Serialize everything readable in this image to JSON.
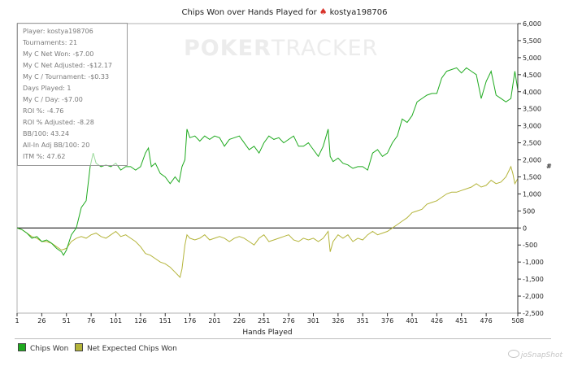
{
  "title": {
    "text_before": "Chips Won over Hands Played for",
    "player": "kostya198706"
  },
  "stats": {
    "rows": [
      "Player: kostya198706",
      "Tournaments: 21",
      "My C Net Won: -$7.00",
      "My C Net Adjusted: -$12.17",
      "My C / Tournament: -$0.33",
      "Days Played: 1",
      "My C / Day: -$7.00",
      "ROI %: -4.76",
      "ROI % Adjusted: -8.28",
      "BB/100: 43.24",
      "All-In Adj BB/100: 20",
      "ITM %: 47.62"
    ]
  },
  "watermark": {
    "part1": "POKER",
    "part2": "TRACKER"
  },
  "snap_logo": {
    "text": "joSnapShot"
  },
  "colors": {
    "chips_won": "#1faa1f",
    "net_expected": "#b4b43a",
    "zero_line": "#000000",
    "spade": "#d8332a"
  },
  "chart_data": {
    "type": "line",
    "title": "Chips Won over Hands Played for kostya198706",
    "xlabel": "Hands Played",
    "ylabel": "#",
    "xlim": [
      1,
      508
    ],
    "ylim": [
      -2500,
      6000
    ],
    "x_ticks": [
      1,
      26,
      51,
      76,
      101,
      126,
      151,
      176,
      201,
      226,
      251,
      276,
      301,
      326,
      351,
      376,
      401,
      426,
      451,
      476,
      508
    ],
    "y_ticks": [
      6000,
      5500,
      5000,
      4500,
      4000,
      3500,
      3000,
      2500,
      2000,
      1500,
      1000,
      500,
      0,
      -500,
      -1000,
      -1500,
      -2000,
      -2500
    ],
    "y_tick_labels": [
      "6,000",
      "5,500",
      "5,000",
      "4,500",
      "4,000",
      "3,500",
      "3,000",
      "2,500",
      "2,000",
      "1,500",
      "1,000",
      "500",
      "0",
      "-500",
      "-1,000",
      "-1,500",
      "-2,000",
      "-2,500"
    ],
    "legend_position": "bottom",
    "series": [
      {
        "name": "Chips Won",
        "points": [
          [
            1,
            0
          ],
          [
            6,
            -50
          ],
          [
            11,
            -150
          ],
          [
            16,
            -300
          ],
          [
            21,
            -250
          ],
          [
            26,
            -400
          ],
          [
            31,
            -350
          ],
          [
            36,
            -450
          ],
          [
            41,
            -600
          ],
          [
            46,
            -700
          ],
          [
            48,
            -800
          ],
          [
            51,
            -650
          ],
          [
            56,
            -200
          ],
          [
            61,
            0
          ],
          [
            66,
            600
          ],
          [
            71,
            800
          ],
          [
            75,
            1800
          ],
          [
            78,
            2200
          ],
          [
            81,
            1900
          ],
          [
            86,
            1800
          ],
          [
            91,
            1850
          ],
          [
            96,
            1800
          ],
          [
            101,
            1900
          ],
          [
            106,
            1700
          ],
          [
            111,
            1800
          ],
          [
            116,
            1800
          ],
          [
            121,
            1700
          ],
          [
            126,
            1800
          ],
          [
            131,
            2200
          ],
          [
            134,
            2350
          ],
          [
            137,
            1800
          ],
          [
            141,
            1900
          ],
          [
            146,
            1600
          ],
          [
            151,
            1500
          ],
          [
            156,
            1300
          ],
          [
            161,
            1500
          ],
          [
            165,
            1350
          ],
          [
            168,
            1800
          ],
          [
            171,
            2000
          ],
          [
            173,
            2900
          ],
          [
            176,
            2650
          ],
          [
            181,
            2700
          ],
          [
            186,
            2550
          ],
          [
            191,
            2700
          ],
          [
            196,
            2600
          ],
          [
            201,
            2700
          ],
          [
            206,
            2650
          ],
          [
            211,
            2400
          ],
          [
            216,
            2600
          ],
          [
            221,
            2650
          ],
          [
            226,
            2700
          ],
          [
            231,
            2500
          ],
          [
            236,
            2300
          ],
          [
            241,
            2400
          ],
          [
            246,
            2200
          ],
          [
            251,
            2500
          ],
          [
            256,
            2700
          ],
          [
            261,
            2600
          ],
          [
            266,
            2650
          ],
          [
            271,
            2500
          ],
          [
            276,
            2600
          ],
          [
            281,
            2700
          ],
          [
            286,
            2400
          ],
          [
            291,
            2400
          ],
          [
            296,
            2500
          ],
          [
            301,
            2300
          ],
          [
            306,
            2100
          ],
          [
            311,
            2400
          ],
          [
            316,
            2900
          ],
          [
            318,
            2100
          ],
          [
            321,
            1950
          ],
          [
            326,
            2050
          ],
          [
            331,
            1900
          ],
          [
            336,
            1850
          ],
          [
            341,
            1750
          ],
          [
            346,
            1800
          ],
          [
            351,
            1800
          ],
          [
            356,
            1700
          ],
          [
            361,
            2200
          ],
          [
            366,
            2300
          ],
          [
            371,
            2100
          ],
          [
            376,
            2200
          ],
          [
            381,
            2500
          ],
          [
            386,
            2700
          ],
          [
            391,
            3200
          ],
          [
            396,
            3100
          ],
          [
            401,
            3300
          ],
          [
            406,
            3700
          ],
          [
            411,
            3800
          ],
          [
            416,
            3900
          ],
          [
            421,
            3950
          ],
          [
            426,
            3950
          ],
          [
            431,
            4400
          ],
          [
            436,
            4600
          ],
          [
            441,
            4650
          ],
          [
            446,
            4700
          ],
          [
            451,
            4550
          ],
          [
            456,
            4700
          ],
          [
            461,
            4600
          ],
          [
            466,
            4500
          ],
          [
            471,
            3800
          ],
          [
            476,
            4300
          ],
          [
            481,
            4600
          ],
          [
            486,
            3900
          ],
          [
            491,
            3800
          ],
          [
            496,
            3700
          ],
          [
            501,
            3800
          ],
          [
            505,
            4600
          ],
          [
            508,
            4050
          ]
        ]
      },
      {
        "name": "Net Expected Chips Won",
        "points": [
          [
            1,
            0
          ],
          [
            6,
            -50
          ],
          [
            11,
            -150
          ],
          [
            16,
            -250
          ],
          [
            21,
            -300
          ],
          [
            26,
            -400
          ],
          [
            31,
            -400
          ],
          [
            36,
            -450
          ],
          [
            41,
            -550
          ],
          [
            46,
            -650
          ],
          [
            51,
            -600
          ],
          [
            56,
            -400
          ],
          [
            61,
            -300
          ],
          [
            66,
            -250
          ],
          [
            71,
            -300
          ],
          [
            76,
            -200
          ],
          [
            81,
            -150
          ],
          [
            86,
            -250
          ],
          [
            91,
            -300
          ],
          [
            96,
            -200
          ],
          [
            101,
            -100
          ],
          [
            106,
            -250
          ],
          [
            111,
            -200
          ],
          [
            116,
            -300
          ],
          [
            121,
            -400
          ],
          [
            126,
            -550
          ],
          [
            131,
            -750
          ],
          [
            136,
            -800
          ],
          [
            141,
            -900
          ],
          [
            146,
            -1000
          ],
          [
            151,
            -1050
          ],
          [
            156,
            -1150
          ],
          [
            161,
            -1300
          ],
          [
            166,
            -1450
          ],
          [
            168,
            -1200
          ],
          [
            171,
            -500
          ],
          [
            173,
            -200
          ],
          [
            176,
            -300
          ],
          [
            181,
            -350
          ],
          [
            186,
            -300
          ],
          [
            191,
            -200
          ],
          [
            196,
            -350
          ],
          [
            201,
            -300
          ],
          [
            206,
            -250
          ],
          [
            211,
            -300
          ],
          [
            216,
            -400
          ],
          [
            221,
            -300
          ],
          [
            226,
            -250
          ],
          [
            231,
            -300
          ],
          [
            236,
            -400
          ],
          [
            241,
            -500
          ],
          [
            246,
            -300
          ],
          [
            251,
            -200
          ],
          [
            256,
            -400
          ],
          [
            261,
            -350
          ],
          [
            266,
            -300
          ],
          [
            271,
            -250
          ],
          [
            276,
            -200
          ],
          [
            281,
            -350
          ],
          [
            286,
            -400
          ],
          [
            291,
            -300
          ],
          [
            296,
            -350
          ],
          [
            301,
            -300
          ],
          [
            306,
            -400
          ],
          [
            311,
            -300
          ],
          [
            316,
            -100
          ],
          [
            318,
            -700
          ],
          [
            321,
            -400
          ],
          [
            326,
            -200
          ],
          [
            331,
            -300
          ],
          [
            336,
            -200
          ],
          [
            341,
            -400
          ],
          [
            346,
            -300
          ],
          [
            351,
            -350
          ],
          [
            356,
            -200
          ],
          [
            361,
            -100
          ],
          [
            366,
            -200
          ],
          [
            371,
            -150
          ],
          [
            376,
            -100
          ],
          [
            381,
            0
          ],
          [
            386,
            100
          ],
          [
            391,
            200
          ],
          [
            396,
            300
          ],
          [
            401,
            450
          ],
          [
            406,
            500
          ],
          [
            411,
            550
          ],
          [
            416,
            700
          ],
          [
            421,
            750
          ],
          [
            426,
            800
          ],
          [
            431,
            900
          ],
          [
            436,
            1000
          ],
          [
            441,
            1050
          ],
          [
            446,
            1050
          ],
          [
            451,
            1100
          ],
          [
            456,
            1150
          ],
          [
            461,
            1200
          ],
          [
            466,
            1300
          ],
          [
            471,
            1200
          ],
          [
            476,
            1250
          ],
          [
            481,
            1400
          ],
          [
            486,
            1300
          ],
          [
            491,
            1350
          ],
          [
            496,
            1500
          ],
          [
            501,
            1800
          ],
          [
            503,
            1600
          ],
          [
            505,
            1300
          ],
          [
            508,
            1450
          ]
        ]
      }
    ]
  }
}
